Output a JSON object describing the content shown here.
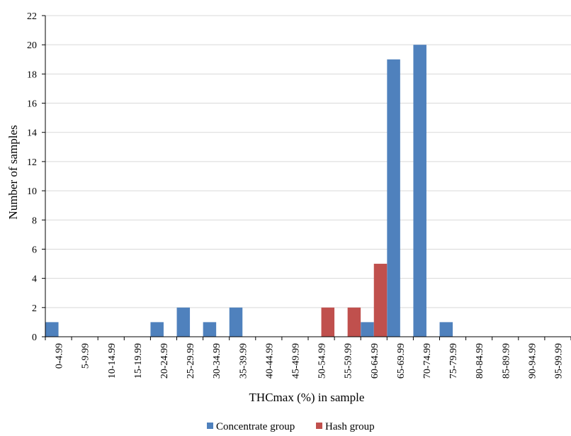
{
  "chart_data": {
    "type": "bar",
    "xlabel": "THCmax (%) in sample",
    "ylabel": "Number of samples",
    "ylim": [
      0,
      22
    ],
    "yticks": [
      0,
      2,
      4,
      6,
      8,
      10,
      12,
      14,
      16,
      18,
      20,
      22
    ],
    "grid": "horizontal",
    "legend_position": "bottom-center",
    "categories": [
      "0-4.99",
      "5-9.99",
      "10-14.99",
      "15-19.99",
      "20-24.99",
      "25-29.99",
      "30-34.99",
      "35-39.99",
      "40-44.99",
      "45-49.99",
      "50-54.99",
      "55-59.99",
      "60-64.99",
      "65-69.99",
      "70-74.99",
      "75-79.99",
      "80-84.99",
      "85-89.99",
      "90-94.99",
      "95-99.99"
    ],
    "series": [
      {
        "name": "Concentrate group",
        "color": "#4F81BD",
        "values": [
          1,
          0,
          0,
          0,
          1,
          2,
          1,
          2,
          0,
          0,
          0,
          0,
          1,
          19,
          20,
          1,
          0,
          0,
          0,
          0
        ]
      },
      {
        "name": "Hash group",
        "color": "#C0504D",
        "values": [
          0,
          0,
          0,
          0,
          0,
          0,
          0,
          0,
          0,
          0,
          2,
          2,
          5,
          0,
          0,
          0,
          0,
          0,
          0,
          0
        ]
      }
    ]
  }
}
